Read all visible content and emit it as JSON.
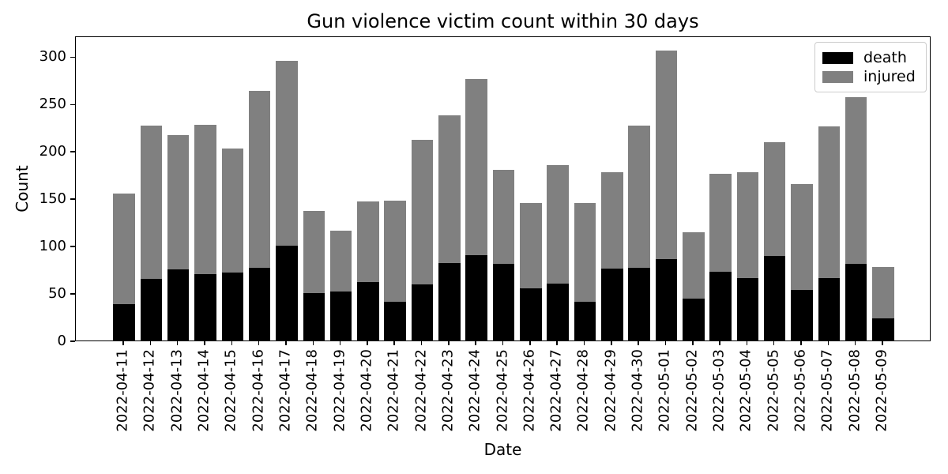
{
  "chart_data": {
    "type": "bar",
    "stacked": true,
    "title": "Gun violence victim count within 30 days",
    "xlabel": "Date",
    "ylabel": "Count",
    "grid": false,
    "legend_position": "upper right",
    "background_color": "#ffffff",
    "yticks": [
      0,
      50,
      100,
      150,
      200,
      250,
      300
    ],
    "ylim": [
      0,
      322
    ],
    "categories": [
      "2022-04-11",
      "2022-04-12",
      "2022-04-13",
      "2022-04-14",
      "2022-04-15",
      "2022-04-16",
      "2022-04-17",
      "2022-04-18",
      "2022-04-19",
      "2022-04-20",
      "2022-04-21",
      "2022-04-22",
      "2022-04-23",
      "2022-04-24",
      "2022-04-25",
      "2022-04-26",
      "2022-04-27",
      "2022-04-28",
      "2022-04-29",
      "2022-04-30",
      "2022-05-01",
      "2022-05-02",
      "2022-05-03",
      "2022-05-04",
      "2022-05-05",
      "2022-05-06",
      "2022-05-07",
      "2022-05-08",
      "2022-05-09"
    ],
    "series": [
      {
        "name": "death",
        "color": "#000000",
        "values": [
          38,
          65,
          75,
          70,
          72,
          77,
          100,
          50,
          52,
          62,
          41,
          59,
          82,
          90,
          81,
          55,
          60,
          41,
          76,
          77,
          86,
          44,
          73,
          66,
          89,
          53,
          66,
          81,
          23
        ]
      },
      {
        "name": "injured",
        "color": "#808080",
        "values": [
          117,
          162,
          142,
          158,
          131,
          187,
          195,
          87,
          64,
          85,
          107,
          153,
          156,
          186,
          99,
          90,
          125,
          104,
          102,
          150,
          220,
          70,
          103,
          112,
          120,
          112,
          160,
          176,
          55
        ]
      }
    ]
  }
}
